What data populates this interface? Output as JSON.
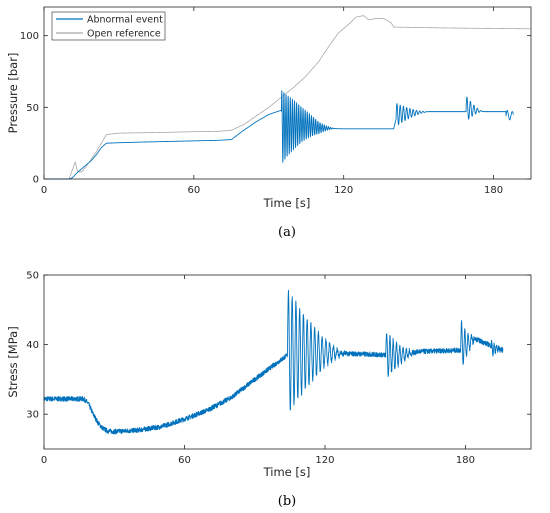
{
  "chart_data": [
    {
      "type": "line",
      "caption": "(a)",
      "xlabel": "Time [s]",
      "ylabel": "Pressure [bar]",
      "xlim": [
        0,
        195
      ],
      "ylim": [
        0,
        120
      ],
      "xticks": [
        0,
        60,
        120,
        180
      ],
      "yticks": [
        0,
        50,
        100
      ],
      "grid": false,
      "legend": "top-left",
      "series": [
        {
          "name": "Abnormal event",
          "color": "#0072BD",
          "points": [
            [
              0,
              0
            ],
            [
              10,
              0
            ],
            [
              11,
              0.5
            ],
            [
              12,
              2
            ],
            [
              13,
              4
            ],
            [
              15,
              7
            ],
            [
              17,
              10
            ],
            [
              19,
              13
            ],
            [
              21,
              17
            ],
            [
              23,
              22
            ],
            [
              25,
              25
            ],
            [
              30,
              25.3
            ],
            [
              40,
              25.8
            ],
            [
              50,
              26.2
            ],
            [
              60,
              26.6
            ],
            [
              70,
              27
            ],
            [
              75,
              27.5
            ],
            [
              80,
              34
            ],
            [
              85,
              40
            ],
            [
              90,
              45
            ],
            [
              95,
              48
            ],
            [
              110,
              35.5
            ],
            [
              120,
              35
            ],
            [
              130,
              35
            ],
            [
              140,
              35
            ],
            [
              141,
              42
            ],
            [
              143,
              47
            ],
            [
              185,
              47
            ],
            [
              188,
              46
            ]
          ],
          "oscillations": [
            {
              "start": 95,
              "end": 117,
              "center": 36,
              "amplitude": 26,
              "period": 0.85
            },
            {
              "start": 141,
              "end": 154,
              "center": 45,
              "amplitude": 8,
              "period": 1.3
            },
            {
              "start": 169,
              "end": 176,
              "center": 49,
              "amplitude": 9,
              "period": 1.4
            },
            {
              "start": 185,
              "end": 195,
              "center": 44,
              "amplitude": 4,
              "period": 2
            }
          ]
        },
        {
          "name": "Open reference",
          "color": "#a8a8a8",
          "points": [
            [
              0,
              0
            ],
            [
              10,
              0
            ],
            [
              11.5,
              7
            ],
            [
              12.5,
              12
            ],
            [
              13.5,
              5
            ],
            [
              15,
              5
            ],
            [
              17,
              9
            ],
            [
              19,
              14
            ],
            [
              21,
              19
            ],
            [
              23,
              25
            ],
            [
              25,
              31
            ],
            [
              30,
              32
            ],
            [
              40,
              32.3
            ],
            [
              50,
              32.6
            ],
            [
              60,
              33
            ],
            [
              70,
              33.3
            ],
            [
              75,
              34
            ],
            [
              80,
              38
            ],
            [
              90,
              50
            ],
            [
              100,
              64
            ],
            [
              105,
              72
            ],
            [
              110,
              82
            ],
            [
              115,
              95
            ],
            [
              118,
              102
            ],
            [
              122,
              108
            ],
            [
              125,
              113
            ],
            [
              128,
              114
            ],
            [
              130,
              111
            ],
            [
              133,
              112
            ],
            [
              136,
              112
            ],
            [
              139,
              109
            ],
            [
              140,
              106
            ],
            [
              150,
              105.7
            ],
            [
              160,
              105.4
            ],
            [
              170,
              105.2
            ],
            [
              180,
              105
            ],
            [
              195,
              104.8
            ]
          ]
        }
      ]
    },
    {
      "type": "line",
      "caption": "(b)",
      "xlabel": "Time [s]",
      "ylabel": "Stress [MPa]",
      "xlim": [
        0,
        208
      ],
      "ylim": [
        25,
        50
      ],
      "xticks": [
        0,
        60,
        120,
        180
      ],
      "yticks": [
        30,
        40,
        50
      ],
      "grid": false,
      "series": [
        {
          "color": "#0072BD",
          "points": [
            [
              0,
              32.2
            ],
            [
              5,
              32.2
            ],
            [
              10,
              32.2
            ],
            [
              17,
              32.2
            ],
            [
              19,
              31.5
            ],
            [
              21,
              30
            ],
            [
              23,
              28.8
            ],
            [
              25,
              28
            ],
            [
              27,
              27.6
            ],
            [
              30,
              27.5
            ],
            [
              40,
              27.7
            ],
            [
              50,
              28.2
            ],
            [
              60,
              29.3
            ],
            [
              70,
              30.6
            ],
            [
              80,
              32.4
            ],
            [
              90,
              35
            ],
            [
              100,
              37.5
            ],
            [
              104,
              38.5
            ],
            [
              110,
              38.3
            ],
            [
              120,
              38.7
            ],
            [
              130,
              38.7
            ],
            [
              140,
              38.6
            ],
            [
              146,
              38.5
            ],
            [
              152,
              38.6
            ],
            [
              160,
              39
            ],
            [
              170,
              39.1
            ],
            [
              178,
              39.2
            ],
            [
              183,
              41
            ],
            [
              190,
              40
            ],
            [
              196,
              39.2
            ]
          ],
          "oscillations": [
            {
              "start": 104,
              "end": 130,
              "center": 39,
              "amplitude": 9,
              "period": 1.6
            },
            {
              "start": 146,
              "end": 160,
              "center": 38.5,
              "amplitude": 3.3,
              "period": 1.4
            },
            {
              "start": 178,
              "end": 185,
              "center": 40,
              "amplitude": 3.5,
              "period": 1.4
            },
            {
              "start": 191,
              "end": 196,
              "center": 39.3,
              "amplitude": 1.3,
              "period": 1
            }
          ],
          "noise": 0.35
        }
      ]
    }
  ]
}
